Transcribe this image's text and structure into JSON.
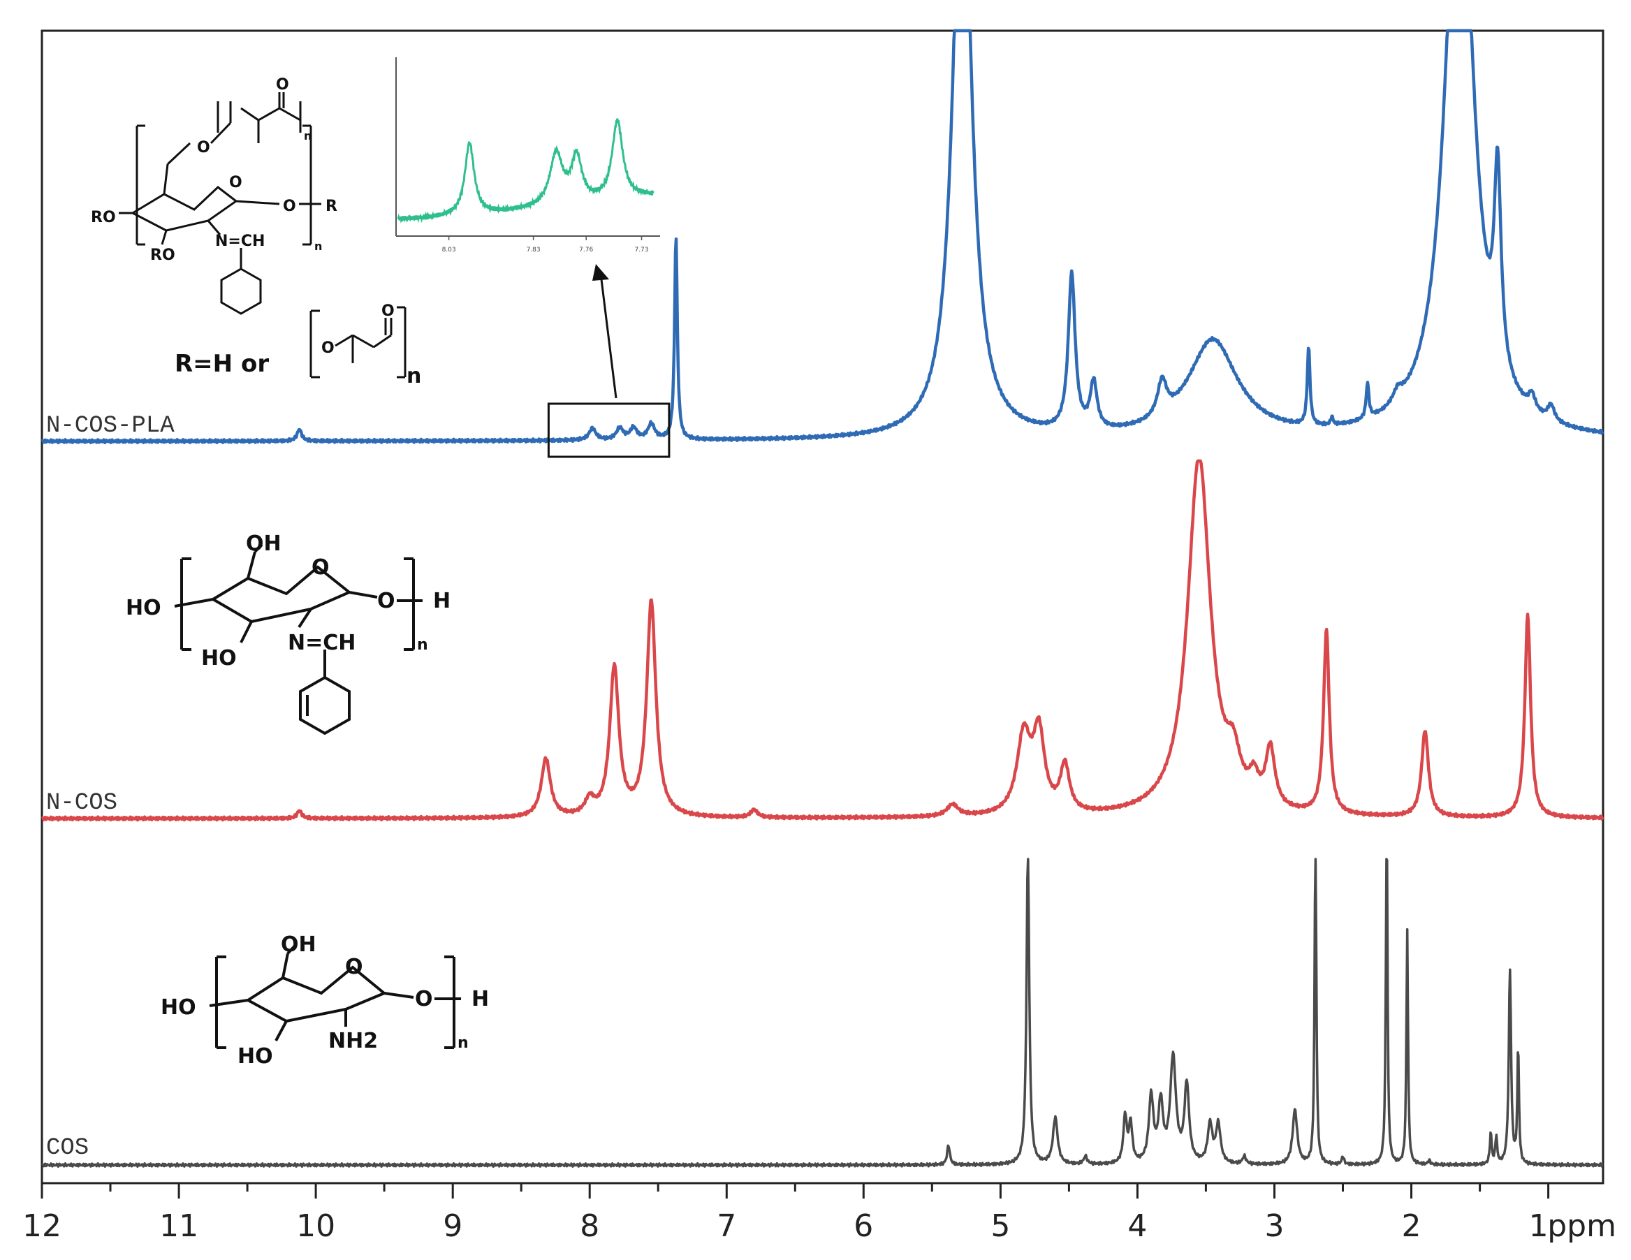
{
  "chart_data": {
    "type": "line",
    "title": "",
    "xlabel": "",
    "ylabel": "",
    "x_unit_label": "ppm",
    "x_ticks": [
      12,
      11,
      10,
      9,
      8,
      7,
      6,
      5,
      4,
      3,
      2,
      1
    ],
    "xlim": [
      12,
      0.6
    ],
    "x_reversed": true,
    "grid": false,
    "colors": {
      "N-COS-PLA": "#2f6bb5",
      "N-COS": "#d9474a",
      "COS": "#4a4a4a",
      "inset": "#2fbf8c"
    },
    "series": [
      {
        "name": "N-COS-PLA",
        "baseline_index": 0,
        "peaks": [
          {
            "ppm": 10.12,
            "height": 0.03,
            "width": 0.02
          },
          {
            "ppm": 7.98,
            "height": 0.03,
            "width": 0.03
          },
          {
            "ppm": 7.78,
            "height": 0.03,
            "width": 0.03
          },
          {
            "ppm": 7.68,
            "height": 0.03,
            "width": 0.03
          },
          {
            "ppm": 7.55,
            "height": 0.04,
            "width": 0.03
          },
          {
            "ppm": 7.37,
            "height": 0.52,
            "width": 0.012
          },
          {
            "ppm": 5.28,
            "height": 1.6,
            "width": 0.08
          },
          {
            "ppm": 4.48,
            "height": 0.4,
            "width": 0.03
          },
          {
            "ppm": 4.32,
            "height": 0.12,
            "width": 0.03
          },
          {
            "ppm": 3.82,
            "height": 0.09,
            "width": 0.04
          },
          {
            "ppm": 3.45,
            "height": 0.25,
            "width": 0.22
          },
          {
            "ppm": 2.75,
            "height": 0.2,
            "width": 0.012
          },
          {
            "ppm": 2.58,
            "height": 0.02,
            "width": 0.01
          },
          {
            "ppm": 2.32,
            "height": 0.09,
            "width": 0.012
          },
          {
            "ppm": 2.1,
            "height": 0.03,
            "width": 0.04
          },
          {
            "ppm": 1.65,
            "height": 1.6,
            "width": 0.12
          },
          {
            "ppm": 1.37,
            "height": 0.5,
            "width": 0.03
          },
          {
            "ppm": 1.12,
            "height": 0.04,
            "width": 0.03
          },
          {
            "ppm": 0.98,
            "height": 0.04,
            "width": 0.03
          }
        ]
      },
      {
        "name": "N-COS",
        "baseline_index": 1,
        "peaks": [
          {
            "ppm": 10.12,
            "height": 0.02,
            "width": 0.02
          },
          {
            "ppm": 8.32,
            "height": 0.15,
            "width": 0.04
          },
          {
            "ppm": 8.0,
            "height": 0.04,
            "width": 0.04
          },
          {
            "ppm": 7.82,
            "height": 0.38,
            "width": 0.04
          },
          {
            "ppm": 7.55,
            "height": 0.55,
            "width": 0.04
          },
          {
            "ppm": 6.8,
            "height": 0.02,
            "width": 0.03
          },
          {
            "ppm": 5.35,
            "height": 0.03,
            "width": 0.05
          },
          {
            "ppm": 4.83,
            "height": 0.2,
            "width": 0.06
          },
          {
            "ppm": 4.72,
            "height": 0.2,
            "width": 0.05
          },
          {
            "ppm": 4.53,
            "height": 0.12,
            "width": 0.04
          },
          {
            "ppm": 3.55,
            "height": 0.92,
            "width": 0.1
          },
          {
            "ppm": 3.3,
            "height": 0.1,
            "width": 0.06
          },
          {
            "ppm": 3.15,
            "height": 0.06,
            "width": 0.04
          },
          {
            "ppm": 3.03,
            "height": 0.15,
            "width": 0.04
          },
          {
            "ppm": 2.62,
            "height": 0.47,
            "width": 0.025
          },
          {
            "ppm": 1.9,
            "height": 0.22,
            "width": 0.03
          },
          {
            "ppm": 1.15,
            "height": 0.52,
            "width": 0.025
          }
        ]
      },
      {
        "name": "COS",
        "baseline_index": 2,
        "peaks": [
          {
            "ppm": 5.38,
            "height": 0.05,
            "width": 0.012
          },
          {
            "ppm": 4.8,
            "height": 0.8,
            "width": 0.012
          },
          {
            "ppm": 4.6,
            "height": 0.12,
            "width": 0.02
          },
          {
            "ppm": 4.38,
            "height": 0.02,
            "width": 0.015
          },
          {
            "ppm": 4.09,
            "height": 0.12,
            "width": 0.015
          },
          {
            "ppm": 4.05,
            "height": 0.1,
            "width": 0.015
          },
          {
            "ppm": 3.9,
            "height": 0.17,
            "width": 0.02
          },
          {
            "ppm": 3.83,
            "height": 0.15,
            "width": 0.02
          },
          {
            "ppm": 3.74,
            "height": 0.27,
            "width": 0.025
          },
          {
            "ppm": 3.64,
            "height": 0.2,
            "width": 0.02
          },
          {
            "ppm": 3.47,
            "height": 0.1,
            "width": 0.02
          },
          {
            "ppm": 3.41,
            "height": 0.1,
            "width": 0.02
          },
          {
            "ppm": 3.22,
            "height": 0.02,
            "width": 0.015
          },
          {
            "ppm": 2.85,
            "height": 0.14,
            "width": 0.02
          },
          {
            "ppm": 2.7,
            "height": 0.92,
            "width": 0.007
          },
          {
            "ppm": 2.5,
            "height": 0.02,
            "width": 0.01
          },
          {
            "ppm": 2.18,
            "height": 0.92,
            "width": 0.007
          },
          {
            "ppm": 2.03,
            "height": 0.6,
            "width": 0.007
          },
          {
            "ppm": 1.87,
            "height": 0.01,
            "width": 0.01
          },
          {
            "ppm": 1.42,
            "height": 0.08,
            "width": 0.008
          },
          {
            "ppm": 1.38,
            "height": 0.07,
            "width": 0.008
          },
          {
            "ppm": 1.28,
            "height": 0.5,
            "width": 0.01
          },
          {
            "ppm": 1.22,
            "height": 0.3,
            "width": 0.007
          }
        ]
      }
    ],
    "inset": {
      "source_range_ppm": [
        8.3,
        7.42
      ],
      "tick_labels": [
        "8.03",
        "7.83",
        "7.76",
        "7.73"
      ],
      "peaks": [
        {
          "pos": 0.28,
          "height": 0.55,
          "width": 0.022
        },
        {
          "pos": 0.62,
          "height": 0.4,
          "width": 0.03
        },
        {
          "pos": 0.7,
          "height": 0.35,
          "width": 0.025
        },
        {
          "pos": 0.86,
          "height": 0.6,
          "width": 0.025
        }
      ]
    }
  },
  "spectrum_labels": {
    "n_cos_pla": "N-COS-PLA",
    "n_cos": "N-COS",
    "cos": "COS"
  },
  "structures": {
    "n_cos_pla": {
      "ro_left": "RO",
      "ro_bottom": "RO",
      "o_ring": "O",
      "o_glyco": "O",
      "r_right": "R",
      "imine": "N=CH",
      "sub_n": "n",
      "pla_o": "O",
      "pla_carbonyl": "O",
      "pla_n": "n",
      "r_def_prefix": "R=H  or",
      "r_def_o": "O",
      "r_def_carbonyl": "O",
      "r_def_n": "n"
    },
    "n_cos": {
      "oh_top": "OH",
      "o_ring": "O",
      "ho_left": "HO",
      "o_glyco": "O",
      "h_right": "H",
      "ho_bottom": "HO",
      "imine": "N=CH",
      "sub_n": "n"
    },
    "cos": {
      "oh_top": "OH",
      "o_ring": "O",
      "ho_left": "HO",
      "o_glyco": "O",
      "h_right": "H",
      "ho_bottom": "HO",
      "amine": "NH2",
      "sub_n": "n"
    }
  }
}
